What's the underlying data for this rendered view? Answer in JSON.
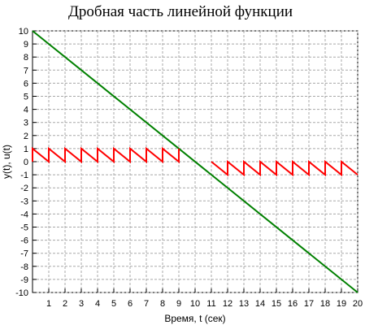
{
  "chart_data": {
    "type": "line",
    "title": "Дробная часть линейной функции",
    "xlabel": "Время, t (сек)",
    "ylabel": "y(t), u(t)",
    "xlim": [
      0,
      20
    ],
    "ylim": [
      -10,
      10
    ],
    "x_ticks": [
      1,
      2,
      3,
      4,
      5,
      6,
      7,
      8,
      9,
      10,
      11,
      12,
      13,
      14,
      15,
      16,
      17,
      18,
      19,
      20
    ],
    "y_ticks": [
      10,
      9,
      8,
      7,
      6,
      5,
      4,
      3,
      2,
      1,
      0,
      -1,
      -2,
      -3,
      -4,
      -5,
      -6,
      -7,
      -8,
      -9,
      -10
    ],
    "grid": true,
    "series": [
      {
        "color": "#008000",
        "x": [
          0,
          20
        ],
        "y": [
          10,
          -10
        ]
      },
      {
        "color": "#ff0000",
        "x": [
          0,
          0,
          1,
          1,
          2,
          2,
          3,
          3,
          4,
          4,
          5,
          5,
          6,
          6,
          7,
          7,
          8,
          8,
          9,
          9,
          11,
          11,
          12,
          12,
          13,
          13,
          14,
          14,
          15,
          15,
          16,
          16,
          17,
          17,
          18,
          18,
          19,
          19,
          20
        ],
        "y": [
          0,
          1,
          0,
          1,
          0,
          1,
          0,
          1,
          0,
          1,
          0,
          1,
          0,
          1,
          0,
          1,
          0,
          1,
          0,
          1,
          null,
          0,
          -1,
          0,
          -1,
          0,
          -1,
          0,
          -1,
          0,
          -1,
          0,
          -1,
          0,
          -1,
          0,
          -1,
          0,
          -1
        ]
      }
    ]
  }
}
